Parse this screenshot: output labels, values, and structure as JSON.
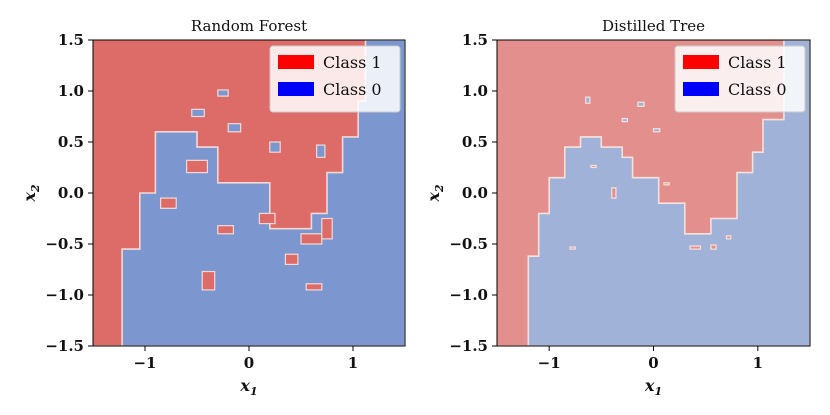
{
  "chart_data": [
    {
      "type": "heatmap",
      "title": "Random Forest",
      "xlabel_base": "x",
      "xlabel_sub": "1",
      "ylabel_base": "x",
      "ylabel_sub": "2",
      "xlim": [
        -1.5,
        1.5
      ],
      "ylim": [
        -1.5,
        1.5
      ],
      "xticks": [
        -1,
        0,
        1
      ],
      "xtick_labels": [
        "−1",
        "0",
        "1"
      ],
      "yticks": [
        1.5,
        1.0,
        0.5,
        0.0,
        -0.5,
        -1.0,
        -1.5
      ],
      "ytick_labels": [
        "1.5",
        "1.0",
        "0.5",
        "0.0",
        "−0.5",
        "−1.0",
        "−1.5"
      ],
      "region_colors": {
        "class_1": "#dd6b68",
        "class_0": "#7c96cf"
      },
      "boundary_color": "#f3d9d6",
      "class0_region_polygon": [
        [
          -1.5,
          -1.5
        ],
        [
          -1.5,
          -1.5
        ],
        [
          -1.22,
          -1.5
        ],
        [
          -1.22,
          -0.55
        ],
        [
          -1.05,
          -0.55
        ],
        [
          -1.05,
          0.0
        ],
        [
          -0.9,
          0.0
        ],
        [
          -0.9,
          0.6
        ],
        [
          -0.5,
          0.6
        ],
        [
          -0.5,
          0.45
        ],
        [
          -0.3,
          0.45
        ],
        [
          -0.3,
          0.1
        ],
        [
          0.2,
          0.1
        ],
        [
          0.2,
          -0.35
        ],
        [
          0.6,
          -0.35
        ],
        [
          0.6,
          -0.2
        ],
        [
          0.75,
          -0.2
        ],
        [
          0.75,
          0.2
        ],
        [
          0.9,
          0.2
        ],
        [
          0.9,
          0.55
        ],
        [
          1.05,
          0.55
        ],
        [
          1.05,
          0.9
        ],
        [
          1.12,
          0.9
        ],
        [
          1.12,
          1.5
        ],
        [
          1.5,
          1.5
        ],
        [
          1.5,
          -1.5
        ]
      ],
      "scattered_class1_patches": [
        [
          -0.85,
          -0.15,
          0.15,
          0.1
        ],
        [
          -0.6,
          0.2,
          0.2,
          0.12
        ],
        [
          -0.3,
          -0.4,
          0.15,
          0.08
        ],
        [
          0.35,
          -0.7,
          0.12,
          0.1
        ],
        [
          0.5,
          -0.5,
          0.2,
          0.1
        ],
        [
          0.7,
          -0.45,
          0.1,
          0.2
        ],
        [
          0.1,
          -0.3,
          0.15,
          0.1
        ],
        [
          -0.45,
          -0.95,
          0.12,
          0.18
        ],
        [
          0.55,
          -0.95,
          0.15,
          0.06
        ]
      ],
      "scattered_class0_patches": [
        [
          -0.55,
          0.75,
          0.12,
          0.07
        ],
        [
          -0.2,
          0.6,
          0.12,
          0.08
        ],
        [
          0.2,
          0.4,
          0.1,
          0.1
        ],
        [
          0.65,
          0.35,
          0.08,
          0.12
        ],
        [
          -0.3,
          0.95,
          0.1,
          0.06
        ]
      ],
      "legend": [
        {
          "label": "Class 1",
          "color": "#ff0000"
        },
        {
          "label": "Class 0",
          "color": "#0000ff"
        }
      ],
      "legend_position": "top-right"
    },
    {
      "type": "heatmap",
      "title": "Distilled Tree",
      "xlabel_base": "x",
      "xlabel_sub": "1",
      "ylabel_base": "x",
      "ylabel_sub": "2",
      "xlim": [
        -1.5,
        1.5
      ],
      "ylim": [
        -1.5,
        1.5
      ],
      "xticks": [
        -1,
        0,
        1
      ],
      "xtick_labels": [
        "−1",
        "0",
        "1"
      ],
      "yticks": [
        1.5,
        1.0,
        0.5,
        0.0,
        -0.5,
        -1.0,
        -1.5
      ],
      "ytick_labels": [
        "1.5",
        "1.0",
        "0.5",
        "0.0",
        "−0.5",
        "−1.0",
        "−1.5"
      ],
      "region_colors": {
        "class_1": "#e38f8e",
        "class_0": "#a0b2d8"
      },
      "boundary_color": "#f6e2dc",
      "class0_region_polygon": [
        [
          -1.5,
          -1.5
        ],
        [
          -1.2,
          -1.5
        ],
        [
          -1.2,
          -0.62
        ],
        [
          -1.1,
          -0.62
        ],
        [
          -1.1,
          -0.2
        ],
        [
          -1.0,
          -0.2
        ],
        [
          -1.0,
          0.15
        ],
        [
          -0.85,
          0.15
        ],
        [
          -0.85,
          0.45
        ],
        [
          -0.7,
          0.45
        ],
        [
          -0.7,
          0.55
        ],
        [
          -0.5,
          0.55
        ],
        [
          -0.5,
          0.45
        ],
        [
          -0.3,
          0.45
        ],
        [
          -0.3,
          0.35
        ],
        [
          -0.2,
          0.35
        ],
        [
          -0.2,
          0.15
        ],
        [
          0.05,
          0.15
        ],
        [
          0.05,
          -0.1
        ],
        [
          0.3,
          -0.1
        ],
        [
          0.3,
          -0.4
        ],
        [
          0.55,
          -0.4
        ],
        [
          0.55,
          -0.25
        ],
        [
          0.8,
          -0.25
        ],
        [
          0.8,
          0.2
        ],
        [
          0.95,
          0.2
        ],
        [
          0.95,
          0.4
        ],
        [
          1.05,
          0.4
        ],
        [
          1.05,
          0.72
        ],
        [
          1.25,
          0.72
        ],
        [
          1.25,
          1.5
        ],
        [
          1.5,
          1.5
        ],
        [
          1.5,
          -1.5
        ]
      ],
      "scattered_class1_patches": [
        [
          -0.6,
          0.25,
          0.05,
          0.02
        ],
        [
          0.1,
          0.08,
          0.05,
          0.02
        ],
        [
          -0.8,
          -0.55,
          0.05,
          0.02
        ],
        [
          0.35,
          -0.55,
          0.1,
          0.03
        ],
        [
          0.55,
          -0.55,
          0.05,
          0.04
        ],
        [
          0.7,
          -0.45,
          0.04,
          0.03
        ],
        [
          -0.4,
          -0.05,
          0.04,
          0.1
        ]
      ],
      "scattered_class0_patches": [
        [
          -0.65,
          0.88,
          0.04,
          0.06
        ],
        [
          -0.15,
          0.85,
          0.06,
          0.04
        ],
        [
          -0.3,
          0.7,
          0.05,
          0.03
        ],
        [
          0.0,
          0.6,
          0.06,
          0.03
        ]
      ],
      "legend": [
        {
          "label": "Class 1",
          "color": "#ff0000"
        },
        {
          "label": "Class 0",
          "color": "#0000ff"
        }
      ],
      "legend_position": "top-right"
    }
  ]
}
